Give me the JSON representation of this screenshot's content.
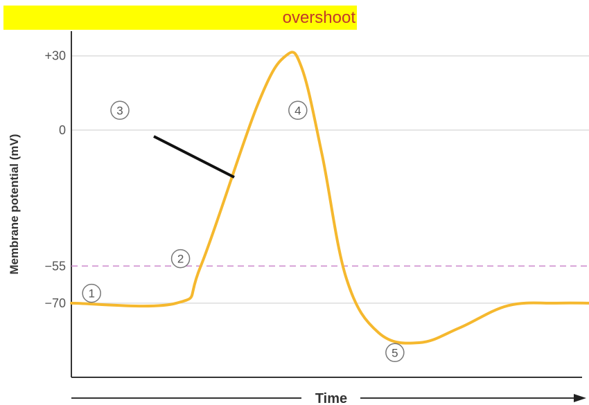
{
  "header": {
    "overshoot_label": "overshoot"
  },
  "colors": {
    "highlight": "#ffff00",
    "label_text": "#c0392b",
    "curve": "#f5b82e",
    "threshold": "#cc88cc"
  },
  "chart_data": {
    "type": "line",
    "title": "",
    "xlabel": "Time",
    "ylabel": "Membrane potential (mV)",
    "ylim": [
      -100,
      40
    ],
    "yticks": [
      {
        "value": 30,
        "label": "+30"
      },
      {
        "value": 0,
        "label": "0"
      },
      {
        "value": -55,
        "label": "−55"
      },
      {
        "value": -70,
        "label": "−70"
      }
    ],
    "threshold": -55,
    "grid": true,
    "series": [
      {
        "values": [
          [
            0,
            -70
          ],
          [
            1.3,
            -70
          ],
          [
            1.6,
            -55
          ],
          [
            2.3,
            10
          ],
          [
            2.65,
            30
          ],
          [
            2.85,
            25
          ],
          [
            3.1,
            -10
          ],
          [
            3.4,
            -60
          ],
          [
            3.8,
            -82
          ],
          [
            4.3,
            -86
          ],
          [
            4.8,
            -80
          ],
          [
            5.4,
            -71
          ],
          [
            6.0,
            -70
          ],
          [
            6.4,
            -70
          ]
        ]
      }
    ],
    "annotations": [
      {
        "label": "1",
        "x": 0.25,
        "y": -66
      },
      {
        "label": "2",
        "x": 1.35,
        "y": -52
      },
      {
        "label": "3",
        "x": 0.6,
        "y": 8
      },
      {
        "label": "4",
        "x": 2.8,
        "y": 8
      },
      {
        "label": "5",
        "x": 4.0,
        "y": -90
      }
    ]
  }
}
